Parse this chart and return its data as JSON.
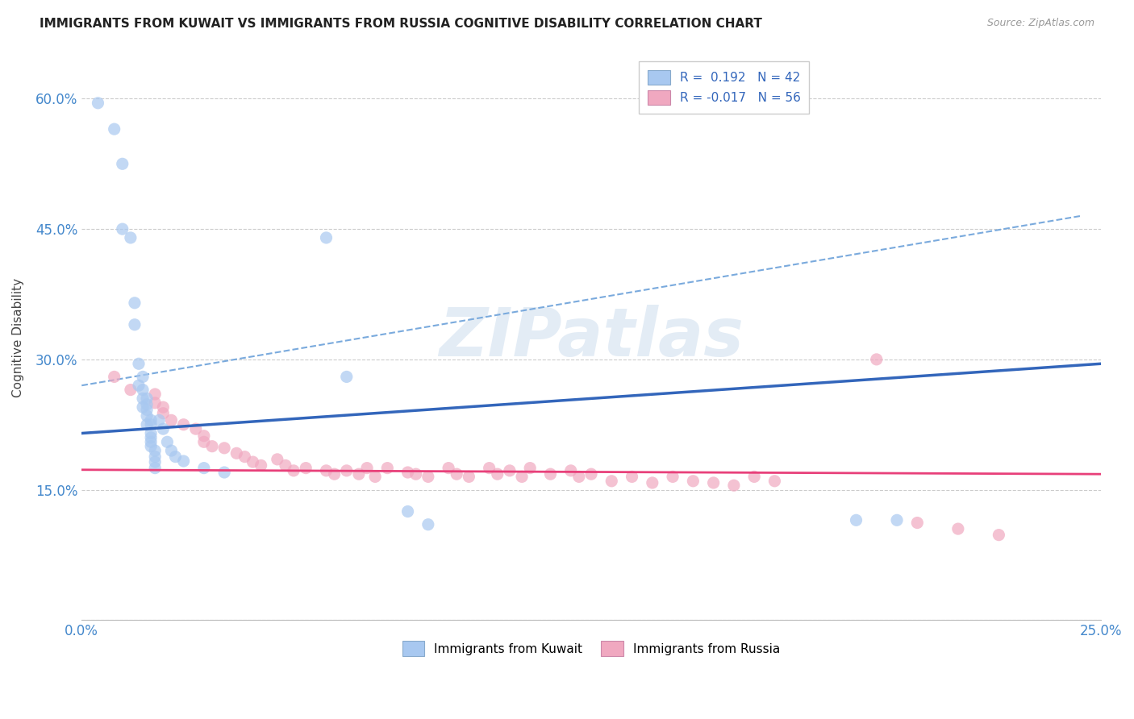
{
  "title": "IMMIGRANTS FROM KUWAIT VS IMMIGRANTS FROM RUSSIA COGNITIVE DISABILITY CORRELATION CHART",
  "source": "Source: ZipAtlas.com",
  "ylabel": "Cognitive Disability",
  "xlim": [
    0.0,
    0.25
  ],
  "ylim": [
    0.0,
    0.65
  ],
  "x_ticks": [
    0.0,
    0.05,
    0.1,
    0.15,
    0.2,
    0.25
  ],
  "y_ticks": [
    0.0,
    0.15,
    0.3,
    0.45,
    0.6
  ],
  "x_tick_labels": [
    "0.0%",
    "",
    "",
    "",
    "",
    "25.0%"
  ],
  "y_tick_labels": [
    "",
    "15.0%",
    "30.0%",
    "45.0%",
    "60.0%"
  ],
  "kuwait_R": 0.192,
  "kuwait_N": 42,
  "russia_R": -0.017,
  "russia_N": 56,
  "kuwait_color": "#a8c8f0",
  "russia_color": "#f0a8c0",
  "kuwait_line_color": "#3366bb",
  "russia_line_color": "#e8407a",
  "background_color": "#ffffff",
  "grid_color": "#cccccc",
  "kuwait_scatter_x": [
    0.004,
    0.008,
    0.01,
    0.013,
    0.013,
    0.014,
    0.014,
    0.015,
    0.015,
    0.015,
    0.015,
    0.016,
    0.016,
    0.016,
    0.016,
    0.016,
    0.017,
    0.017,
    0.017,
    0.017,
    0.017,
    0.017,
    0.018,
    0.018,
    0.018,
    0.018,
    0.019,
    0.02,
    0.021,
    0.022,
    0.023,
    0.025,
    0.03,
    0.035,
    0.06,
    0.065,
    0.08,
    0.085,
    0.19,
    0.2,
    0.01,
    0.012
  ],
  "kuwait_scatter_y": [
    0.595,
    0.565,
    0.525,
    0.365,
    0.34,
    0.295,
    0.27,
    0.28,
    0.265,
    0.255,
    0.245,
    0.255,
    0.248,
    0.242,
    0.235,
    0.225,
    0.23,
    0.225,
    0.215,
    0.21,
    0.205,
    0.2,
    0.195,
    0.188,
    0.182,
    0.175,
    0.23,
    0.22,
    0.205,
    0.195,
    0.188,
    0.183,
    0.175,
    0.17,
    0.44,
    0.28,
    0.125,
    0.11,
    0.115,
    0.115,
    0.45,
    0.44
  ],
  "russia_scatter_x": [
    0.008,
    0.012,
    0.018,
    0.018,
    0.02,
    0.02,
    0.022,
    0.025,
    0.028,
    0.03,
    0.03,
    0.032,
    0.035,
    0.038,
    0.04,
    0.042,
    0.044,
    0.048,
    0.05,
    0.052,
    0.055,
    0.06,
    0.062,
    0.065,
    0.068,
    0.07,
    0.072,
    0.075,
    0.08,
    0.082,
    0.085,
    0.09,
    0.092,
    0.095,
    0.1,
    0.102,
    0.105,
    0.108,
    0.11,
    0.115,
    0.12,
    0.122,
    0.125,
    0.13,
    0.135,
    0.14,
    0.145,
    0.15,
    0.155,
    0.16,
    0.165,
    0.17,
    0.195,
    0.205,
    0.215,
    0.225
  ],
  "russia_scatter_y": [
    0.28,
    0.265,
    0.26,
    0.25,
    0.245,
    0.238,
    0.23,
    0.225,
    0.22,
    0.212,
    0.205,
    0.2,
    0.198,
    0.192,
    0.188,
    0.182,
    0.178,
    0.185,
    0.178,
    0.172,
    0.175,
    0.172,
    0.168,
    0.172,
    0.168,
    0.175,
    0.165,
    0.175,
    0.17,
    0.168,
    0.165,
    0.175,
    0.168,
    0.165,
    0.175,
    0.168,
    0.172,
    0.165,
    0.175,
    0.168,
    0.172,
    0.165,
    0.168,
    0.16,
    0.165,
    0.158,
    0.165,
    0.16,
    0.158,
    0.155,
    0.165,
    0.16,
    0.3,
    0.112,
    0.105,
    0.098
  ],
  "kuwait_line_x0": 0.0,
  "kuwait_line_y0": 0.215,
  "kuwait_line_x1": 0.25,
  "kuwait_line_y1": 0.295,
  "russia_line_x0": 0.0,
  "russia_line_y0": 0.173,
  "russia_line_x1": 0.25,
  "russia_line_y1": 0.168,
  "dash_line_x0": 0.0,
  "dash_line_y0": 0.27,
  "dash_line_x1": 0.245,
  "dash_line_y1": 0.465
}
